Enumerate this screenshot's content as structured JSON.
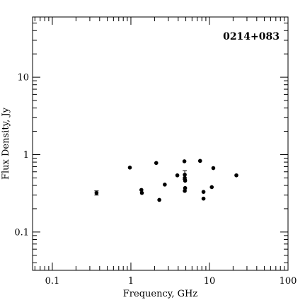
{
  "chart_data": {
    "type": "scatter",
    "title": "0214+083",
    "xlabel": "Frequency, GHz",
    "ylabel": "Flux Density, Jy",
    "xscale": "log",
    "yscale": "log",
    "xlim": [
      0.056,
      100
    ],
    "ylim": [
      0.032,
      60
    ],
    "x_ticks": [
      {
        "value": 0.1,
        "label": "0.1"
      },
      {
        "value": 1,
        "label": "1"
      },
      {
        "value": 10,
        "label": "10"
      },
      {
        "value": 100,
        "label": "100"
      }
    ],
    "y_ticks": [
      {
        "value": 0.1,
        "label": "0.1"
      },
      {
        "value": 1,
        "label": "1"
      },
      {
        "value": 10,
        "label": "10"
      }
    ],
    "series": [
      {
        "points": [
          {
            "x": 0.365,
            "y": 0.32,
            "yerr": 0.02
          },
          {
            "x": 0.97,
            "y": 0.68
          },
          {
            "x": 1.36,
            "y": 0.35
          },
          {
            "x": 1.38,
            "y": 0.32
          },
          {
            "x": 2.1,
            "y": 0.78
          },
          {
            "x": 2.3,
            "y": 0.26
          },
          {
            "x": 2.7,
            "y": 0.41
          },
          {
            "x": 3.9,
            "y": 0.54
          },
          {
            "x": 4.8,
            "y": 0.82
          },
          {
            "x": 4.85,
            "y": 0.55,
            "yerr": 0.07
          },
          {
            "x": 4.85,
            "y": 0.5
          },
          {
            "x": 4.9,
            "y": 0.46
          },
          {
            "x": 4.9,
            "y": 0.37
          },
          {
            "x": 4.85,
            "y": 0.34
          },
          {
            "x": 7.6,
            "y": 0.83
          },
          {
            "x": 8.4,
            "y": 0.33
          },
          {
            "x": 8.4,
            "y": 0.27
          },
          {
            "x": 10.7,
            "y": 0.38
          },
          {
            "x": 11.2,
            "y": 0.67
          },
          {
            "x": 22,
            "y": 0.54
          }
        ]
      }
    ]
  }
}
